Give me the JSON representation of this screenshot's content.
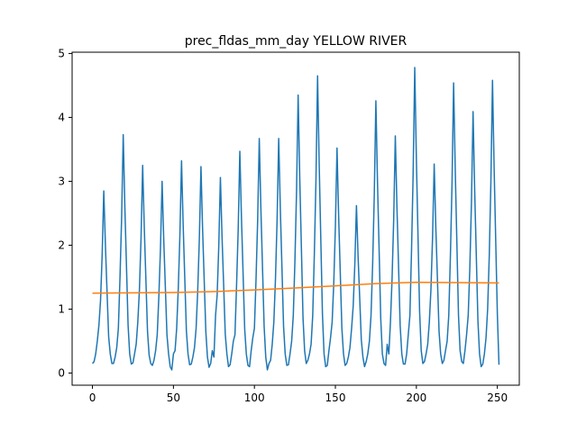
{
  "chart_data": {
    "type": "line",
    "title": "prec_fldas_mm_day YELLOW RIVER",
    "xlim": [
      -12.55,
      263.55
    ],
    "xticks": [
      0,
      50,
      100,
      150,
      200,
      250
    ],
    "ylim": [
      -0.19,
      5.02
    ],
    "yticks": [
      0,
      1,
      2,
      3,
      4,
      5
    ],
    "series": [
      {
        "color": "#1f77b4",
        "x": [
          0,
          1,
          2,
          3,
          4,
          5,
          6,
          7,
          8,
          9,
          10,
          11,
          12,
          13,
          14,
          15,
          16,
          17,
          18,
          19,
          20,
          21,
          22,
          23,
          24,
          25,
          26,
          27,
          28,
          29,
          30,
          31,
          32,
          33,
          34,
          35,
          36,
          37,
          38,
          39,
          40,
          41,
          42,
          43,
          44,
          45,
          46,
          47,
          48,
          49,
          50,
          51,
          52,
          53,
          54,
          55,
          56,
          57,
          58,
          59,
          60,
          61,
          62,
          63,
          64,
          65,
          66,
          67,
          68,
          69,
          70,
          71,
          72,
          73,
          74,
          75,
          76,
          77,
          78,
          79,
          80,
          81,
          82,
          83,
          84,
          85,
          86,
          87,
          88,
          89,
          90,
          91,
          92,
          93,
          94,
          95,
          96,
          97,
          98,
          99,
          100,
          101,
          102,
          103,
          104,
          105,
          106,
          107,
          108,
          109,
          110,
          111,
          112,
          113,
          114,
          115,
          116,
          117,
          118,
          119,
          120,
          121,
          122,
          123,
          124,
          125,
          126,
          127,
          128,
          129,
          130,
          131,
          132,
          133,
          134,
          135,
          136,
          137,
          138,
          139,
          140,
          141,
          142,
          143,
          144,
          145,
          146,
          147,
          148,
          149,
          150,
          151,
          152,
          153,
          154,
          155,
          156,
          157,
          158,
          159,
          160,
          161,
          162,
          163,
          164,
          165,
          166,
          167,
          168,
          169,
          170,
          171,
          172,
          173,
          174,
          175,
          176,
          177,
          178,
          179,
          180,
          181,
          182,
          183,
          184,
          185,
          186,
          187,
          188,
          189,
          190,
          191,
          192,
          193,
          194,
          195,
          196,
          197,
          198,
          199,
          200,
          201,
          202,
          203,
          204,
          205,
          206,
          207,
          208,
          209,
          210,
          211,
          212,
          213,
          214,
          215,
          216,
          217,
          218,
          219,
          220,
          221,
          222,
          223,
          224,
          225,
          226,
          227,
          228,
          229,
          230,
          231,
          232,
          233,
          234,
          235,
          236,
          237,
          238,
          239,
          240,
          241,
          242,
          243,
          244,
          245,
          246,
          247,
          248,
          249,
          250,
          251
        ],
        "values": [
          0.15,
          0.18,
          0.3,
          0.5,
          0.75,
          1.14,
          1.85,
          2.85,
          2.0,
          1.28,
          0.57,
          0.3,
          0.15,
          0.15,
          0.25,
          0.4,
          0.7,
          1.49,
          2.42,
          3.73,
          2.61,
          1.68,
          0.75,
          0.3,
          0.14,
          0.16,
          0.3,
          0.45,
          0.8,
          1.3,
          2.11,
          3.25,
          2.28,
          1.46,
          0.65,
          0.28,
          0.15,
          0.12,
          0.2,
          0.35,
          0.6,
          1.2,
          1.95,
          3.0,
          2.1,
          1.35,
          0.6,
          0.3,
          0.1,
          0.05,
          0.3,
          0.35,
          0.7,
          1.33,
          2.16,
          3.32,
          2.32,
          1.49,
          0.66,
          0.3,
          0.13,
          0.14,
          0.25,
          0.4,
          0.7,
          1.29,
          2.1,
          3.23,
          2.26,
          1.45,
          0.65,
          0.25,
          0.09,
          0.15,
          0.35,
          0.25,
          0.9,
          1.22,
          1.99,
          3.06,
          2.14,
          1.38,
          0.61,
          0.3,
          0.1,
          0.13,
          0.3,
          0.5,
          0.6,
          1.39,
          2.26,
          3.47,
          2.43,
          1.56,
          0.69,
          0.3,
          0.12,
          0.1,
          0.35,
          0.55,
          0.7,
          1.47,
          2.39,
          3.67,
          2.57,
          1.65,
          0.73,
          0.25,
          0.05,
          0.15,
          0.2,
          0.45,
          0.8,
          1.47,
          2.39,
          3.67,
          2.57,
          1.65,
          0.73,
          0.3,
          0.12,
          0.13,
          0.3,
          0.5,
          0.9,
          1.74,
          2.83,
          4.35,
          3.05,
          1.96,
          0.87,
          0.35,
          0.15,
          0.2,
          0.3,
          0.45,
          0.9,
          1.86,
          3.02,
          4.65,
          3.26,
          2.09,
          0.93,
          0.3,
          0.1,
          0.12,
          0.35,
          0.55,
          0.8,
          1.41,
          2.29,
          3.52,
          2.46,
          1.58,
          0.7,
          0.3,
          0.12,
          0.15,
          0.25,
          0.4,
          0.7,
          1.05,
          1.7,
          2.62,
          1.83,
          1.18,
          0.52,
          0.25,
          0.1,
          0.18,
          0.3,
          0.5,
          0.9,
          1.7,
          2.77,
          4.26,
          2.98,
          1.92,
          0.85,
          0.3,
          0.15,
          0.12,
          0.45,
          0.3,
          0.8,
          1.48,
          2.41,
          3.71,
          2.6,
          1.67,
          0.74,
          0.3,
          0.14,
          0.14,
          0.3,
          0.6,
          0.9,
          1.91,
          3.11,
          4.78,
          3.35,
          2.15,
          0.96,
          0.35,
          0.15,
          0.18,
          0.3,
          0.45,
          0.8,
          1.31,
          2.13,
          3.27,
          2.29,
          1.47,
          0.65,
          0.3,
          0.15,
          0.2,
          0.35,
          0.5,
          0.9,
          1.82,
          2.95,
          4.54,
          3.18,
          2.04,
          0.91,
          0.35,
          0.18,
          0.15,
          0.35,
          0.6,
          0.9,
          1.64,
          2.66,
          4.09,
          2.86,
          1.84,
          0.82,
          0.3,
          0.1,
          0.14,
          0.3,
          0.55,
          1.0,
          1.83,
          2.98,
          4.58,
          3.21,
          2.06,
          0.92,
          0.13
        ]
      },
      {
        "color": "#ff7f0e",
        "x": [
          0,
          25,
          50,
          75,
          100,
          125,
          150,
          175,
          200,
          225,
          251
        ],
        "values": [
          1.25,
          1.255,
          1.26,
          1.275,
          1.3,
          1.33,
          1.365,
          1.4,
          1.42,
          1.415,
          1.41
        ]
      }
    ]
  }
}
